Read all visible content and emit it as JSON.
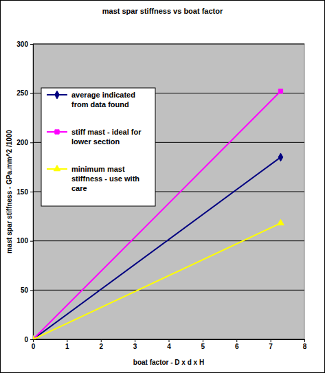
{
  "chart_data": {
    "type": "line",
    "title": "mast spar stiffness vs boat factor",
    "x_label": "boat factor - D x d x H",
    "y_label": "mast spar stiffness - GPa.mm^2 /1000",
    "x": [
      0,
      7.3
    ],
    "xlim": [
      0,
      8
    ],
    "xticks": [
      0,
      1,
      2,
      3,
      4,
      5,
      6,
      7,
      8
    ],
    "ylim": [
      0,
      300
    ],
    "yticks": [
      0,
      50,
      100,
      150,
      200,
      250,
      300
    ],
    "grid": true,
    "legend": "upper-left",
    "series": [
      {
        "name": "average indicated from data found",
        "color": "#000080",
        "marker": "diamond",
        "values": [
          0,
          185
        ]
      },
      {
        "name": "stiff mast - ideal for lower section",
        "color": "#ff00ff",
        "marker": "square",
        "values": [
          0,
          252
        ]
      },
      {
        "name": "minimum mast stiffness - use with care",
        "color": "#ffff00",
        "marker": "triangle",
        "values": [
          0,
          118
        ]
      }
    ]
  }
}
